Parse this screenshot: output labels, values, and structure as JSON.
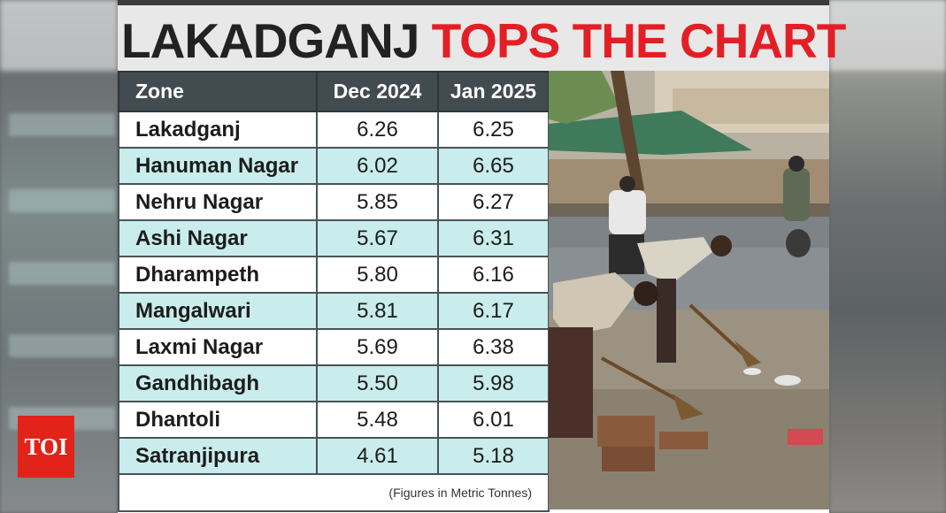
{
  "headline": {
    "part1": "LAKADGANJ",
    "part2": "TOPS THE CHART"
  },
  "table": {
    "headers": [
      "Zone",
      "Dec 2024",
      "Jan 2025"
    ],
    "rows": [
      [
        "Lakadganj",
        "6.26",
        "6.25"
      ],
      [
        "Hanuman Nagar",
        "6.02",
        "6.65"
      ],
      [
        "Nehru Nagar",
        "5.85",
        "6.27"
      ],
      [
        "Ashi Nagar",
        "5.67",
        "6.31"
      ],
      [
        "Dharampeth",
        "5.80",
        "6.16"
      ],
      [
        "Mangalwari",
        "5.81",
        "6.17"
      ],
      [
        "Laxmi Nagar",
        "5.69",
        "6.38"
      ],
      [
        "Gandhibagh",
        "5.50",
        "5.98"
      ],
      [
        "Dhantoli",
        "5.48",
        "6.01"
      ],
      [
        "Satranjipura",
        "4.61",
        "5.18"
      ]
    ],
    "note": "(Figures in Metric Tonnes)"
  },
  "logo": {
    "text": "TOI"
  },
  "colors": {
    "header_bg": "#414b50",
    "alt_row": "#c9ecec",
    "headline_red": "#e21f26",
    "logo_red": "#e2231a"
  }
}
